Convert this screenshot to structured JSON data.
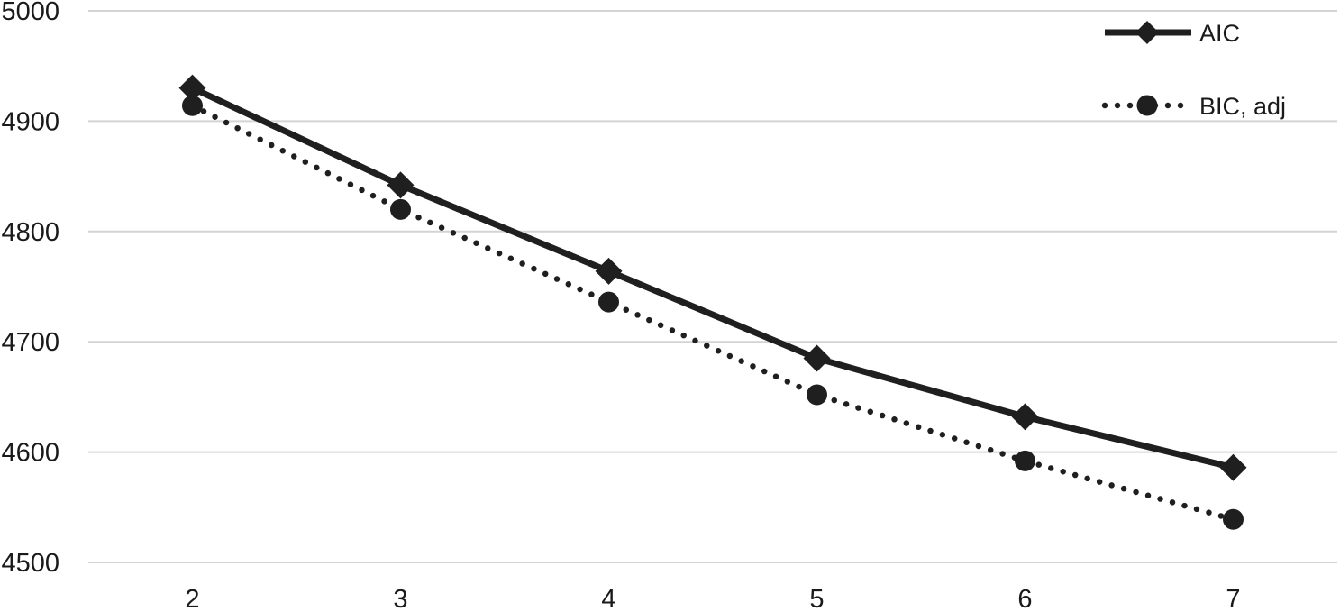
{
  "chart_data": {
    "type": "line",
    "title": "",
    "xlabel": "",
    "ylabel": "",
    "x": [
      2,
      3,
      4,
      5,
      6,
      7
    ],
    "x_tick_labels": [
      "2",
      "3",
      "4",
      "5",
      "6",
      "7"
    ],
    "ylim": [
      4500,
      5000
    ],
    "y_tick_labels": [
      "4500",
      "4600",
      "4700",
      "4800",
      "4900",
      "5000"
    ],
    "grid": "horizontal",
    "legend_position": "top-right",
    "series": [
      {
        "name": "AIC",
        "line_style": "solid",
        "marker": "diamond",
        "color": "#1f1f1f",
        "values": [
          4930,
          4842,
          4764,
          4685,
          4632,
          4586
        ]
      },
      {
        "name": "BIC, adj",
        "line_style": "dotted",
        "marker": "circle",
        "color": "#1f1f1f",
        "values": [
          4914,
          4820,
          4736,
          4652,
          4592,
          4539
        ]
      }
    ]
  }
}
